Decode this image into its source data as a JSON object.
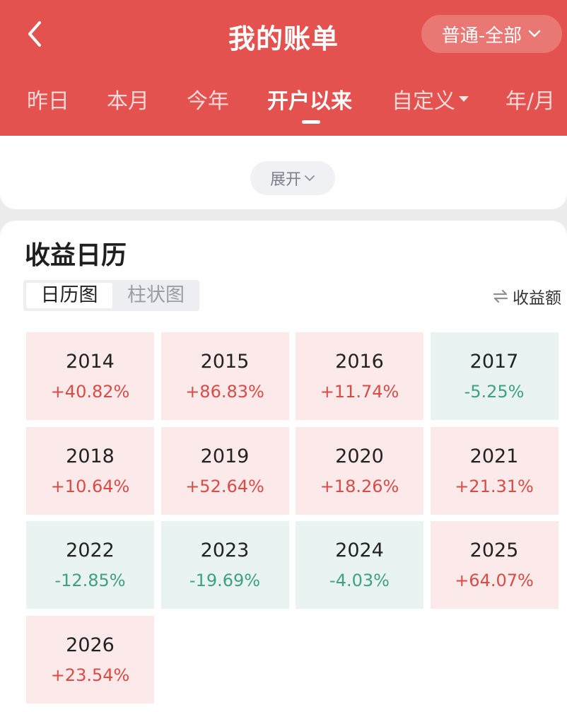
{
  "header": {
    "title": "我的账单",
    "account_switch": "普通-全部",
    "tabs": [
      "昨日",
      "本月",
      "今年",
      "开户以来",
      "自定义",
      "年/月"
    ],
    "active_tab": "开户以来"
  },
  "summary": {
    "expand_label": "展开"
  },
  "calendar": {
    "title": "收益日历",
    "view_options": [
      "日历图",
      "柱状图"
    ],
    "active_view": "日历图",
    "metric_label": "收益额",
    "years": [
      {
        "year": "2014",
        "pct": "+40.82%",
        "trend": "gain"
      },
      {
        "year": "2015",
        "pct": "+86.83%",
        "trend": "gain"
      },
      {
        "year": "2016",
        "pct": "+11.74%",
        "trend": "gain"
      },
      {
        "year": "2017",
        "pct": "-5.25%",
        "trend": "loss"
      },
      {
        "year": "2018",
        "pct": "+10.64%",
        "trend": "gain"
      },
      {
        "year": "2019",
        "pct": "+52.64%",
        "trend": "gain"
      },
      {
        "year": "2020",
        "pct": "+18.26%",
        "trend": "gain"
      },
      {
        "year": "2021",
        "pct": "+21.31%",
        "trend": "gain"
      },
      {
        "year": "2022",
        "pct": "-12.85%",
        "trend": "loss"
      },
      {
        "year": "2023",
        "pct": "-19.69%",
        "trend": "loss"
      },
      {
        "year": "2024",
        "pct": "-4.03%",
        "trend": "loss"
      },
      {
        "year": "2025",
        "pct": "+64.07%",
        "trend": "gain"
      },
      {
        "year": "2026",
        "pct": "+23.54%",
        "trend": "gain"
      }
    ]
  },
  "colors": {
    "header_bg": "#e3524f",
    "gain_text": "#dc4a46",
    "gain_bg": "#fceaea",
    "loss_text": "#3ea181",
    "loss_bg": "#e9f3f1"
  },
  "icons": [
    "back-arrow-icon",
    "chevron-down-icon",
    "caret-down-icon",
    "swap-icon"
  ]
}
